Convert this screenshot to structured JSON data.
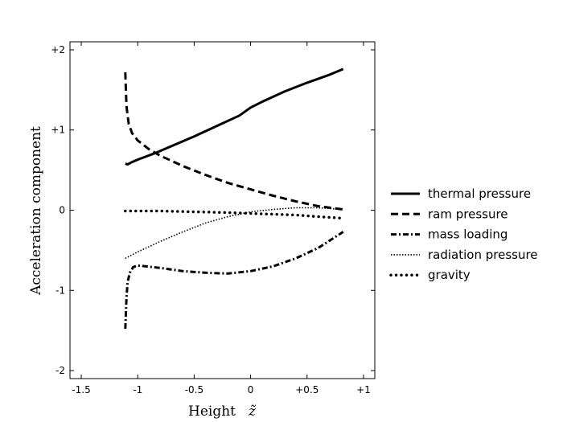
{
  "chart_data": {
    "type": "line",
    "title": "",
    "xlabel": "Height",
    "xlabel_symbol": "z̃",
    "ylabel": "Acceleration component",
    "xlim": [
      -1.6,
      1.1
    ],
    "ylim": [
      -2.1,
      2.1
    ],
    "grid": false,
    "legend_position": "right",
    "x_ticks": [
      {
        "value": -1.5,
        "label": "-1.5"
      },
      {
        "value": -1.0,
        "label": "-1"
      },
      {
        "value": -0.5,
        "label": "-0.5"
      },
      {
        "value": 0.0,
        "label": "0"
      },
      {
        "value": 0.5,
        "label": "+0.5"
      },
      {
        "value": 1.0,
        "label": "+1"
      }
    ],
    "y_ticks": [
      {
        "value": 2,
        "label": "+2"
      },
      {
        "value": 1,
        "label": "+1"
      },
      {
        "value": 0,
        "label": "0"
      },
      {
        "value": -1,
        "label": "-1"
      },
      {
        "value": -2,
        "label": "-2"
      }
    ],
    "series": [
      {
        "name": "thermal pressure",
        "dash": "solid",
        "points": [
          [
            -1.11,
            0.58
          ],
          [
            -1.09,
            0.57
          ],
          [
            -1.05,
            0.6
          ],
          [
            -1.0,
            0.63
          ],
          [
            -0.85,
            0.71
          ],
          [
            -0.7,
            0.8
          ],
          [
            -0.5,
            0.92
          ],
          [
            -0.3,
            1.05
          ],
          [
            -0.1,
            1.18
          ],
          [
            0.0,
            1.28
          ],
          [
            0.1,
            1.35
          ],
          [
            0.3,
            1.48
          ],
          [
            0.5,
            1.59
          ],
          [
            0.7,
            1.69
          ],
          [
            0.82,
            1.76
          ]
        ]
      },
      {
        "name": "ram pressure",
        "dash": "dashed",
        "points": [
          [
            -1.11,
            1.72
          ],
          [
            -1.1,
            1.3
          ],
          [
            -1.08,
            1.08
          ],
          [
            -1.05,
            0.96
          ],
          [
            -1.0,
            0.87
          ],
          [
            -0.9,
            0.76
          ],
          [
            -0.8,
            0.68
          ],
          [
            -0.6,
            0.55
          ],
          [
            -0.4,
            0.44
          ],
          [
            -0.2,
            0.34
          ],
          [
            0.0,
            0.26
          ],
          [
            0.2,
            0.18
          ],
          [
            0.4,
            0.11
          ],
          [
            0.6,
            0.05
          ],
          [
            0.82,
            0.01
          ]
        ]
      },
      {
        "name": "mass loading",
        "dash": "dashdot",
        "points": [
          [
            -1.11,
            -1.48
          ],
          [
            -1.1,
            -1.1
          ],
          [
            -1.09,
            -0.9
          ],
          [
            -1.07,
            -0.78
          ],
          [
            -1.04,
            -0.71
          ],
          [
            -1.0,
            -0.69
          ],
          [
            -0.8,
            -0.72
          ],
          [
            -0.6,
            -0.76
          ],
          [
            -0.4,
            -0.78
          ],
          [
            -0.2,
            -0.79
          ],
          [
            0.0,
            -0.76
          ],
          [
            0.2,
            -0.7
          ],
          [
            0.4,
            -0.6
          ],
          [
            0.6,
            -0.47
          ],
          [
            0.82,
            -0.27
          ]
        ]
      },
      {
        "name": "radiation pressure",
        "dash": "dotted",
        "points": [
          [
            -1.11,
            -0.6
          ],
          [
            -1.0,
            -0.52
          ],
          [
            -0.8,
            -0.39
          ],
          [
            -0.6,
            -0.27
          ],
          [
            -0.4,
            -0.16
          ],
          [
            -0.2,
            -0.08
          ],
          [
            0.0,
            -0.02
          ],
          [
            0.2,
            0.01
          ],
          [
            0.4,
            0.03
          ],
          [
            0.6,
            0.03
          ],
          [
            0.82,
            0.01
          ]
        ]
      },
      {
        "name": "gravity",
        "dash": "bigdots",
        "points": [
          [
            -1.11,
            -0.01
          ],
          [
            -0.8,
            -0.01
          ],
          [
            -0.5,
            -0.02
          ],
          [
            -0.2,
            -0.03
          ],
          [
            0.0,
            -0.04
          ],
          [
            0.2,
            -0.05
          ],
          [
            0.4,
            -0.06
          ],
          [
            0.6,
            -0.08
          ],
          [
            0.82,
            -0.1
          ]
        ]
      }
    ]
  }
}
